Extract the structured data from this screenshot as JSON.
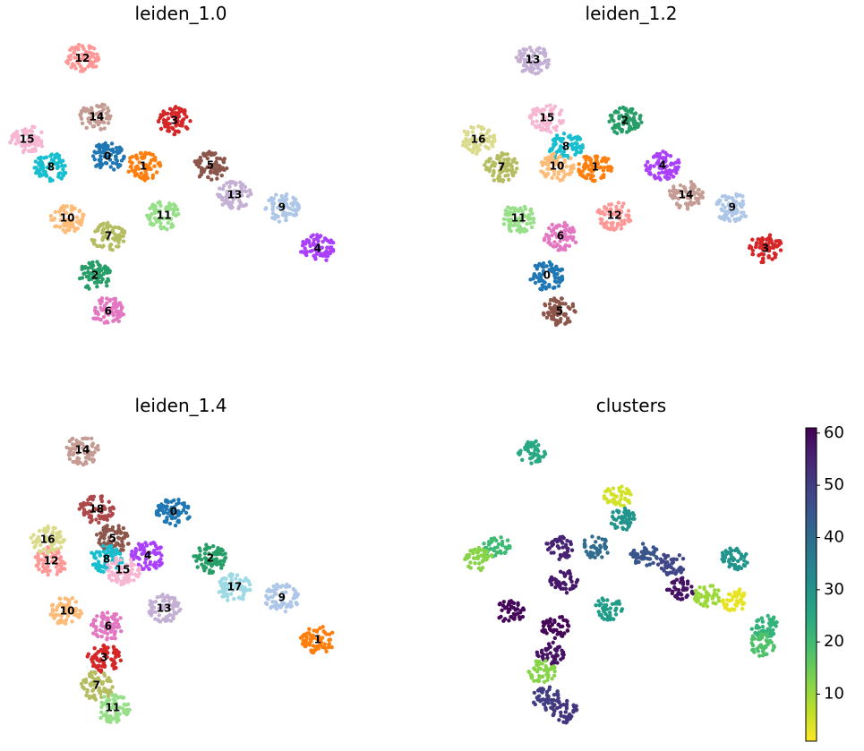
{
  "chart_data": [
    {
      "type": "scatter",
      "title": "leiden_1.0",
      "xlim": [
        0,
        100
      ],
      "ylim": [
        0,
        100
      ],
      "clusters": [
        {
          "label": "0",
          "color": "#1f77b4",
          "x": 27.8,
          "y": 61.8
        },
        {
          "label": "1",
          "color": "#ff7f0e",
          "x": 38.9,
          "y": 58.5
        },
        {
          "label": "2",
          "color": "#279e68",
          "x": 23.9,
          "y": 22.6
        },
        {
          "label": "3",
          "color": "#d62728",
          "x": 48.6,
          "y": 73.5
        },
        {
          "label": "4",
          "color": "#aa40fc",
          "x": 93,
          "y": 31.5
        },
        {
          "label": "5",
          "color": "#8c564b",
          "x": 59.7,
          "y": 58.8
        },
        {
          "label": "6",
          "color": "#e377c2",
          "x": 28,
          "y": 10.9
        },
        {
          "label": "7",
          "color": "#b5bd61",
          "x": 28.1,
          "y": 35.6
        },
        {
          "label": "8",
          "color": "#17becf",
          "x": 10.3,
          "y": 58.2
        },
        {
          "label": "9",
          "color": "#aec7e8",
          "x": 81.9,
          "y": 45
        },
        {
          "label": "10",
          "color": "#ffbb78",
          "x": 15.3,
          "y": 41.5
        },
        {
          "label": "11",
          "color": "#98df8a",
          "x": 45.3,
          "y": 42.4
        },
        {
          "label": "12",
          "color": "#ff9896",
          "x": 20,
          "y": 94
        },
        {
          "label": "13",
          "color": "#c5b0d5",
          "x": 67.2,
          "y": 49.1
        },
        {
          "label": "14",
          "color": "#c49c94",
          "x": 24.4,
          "y": 74.7
        },
        {
          "label": "15",
          "color": "#f7b6d2",
          "x": 2.8,
          "y": 67.4
        }
      ]
    },
    {
      "type": "scatter",
      "title": "leiden_1.2",
      "xlim": [
        0,
        100
      ],
      "ylim": [
        0,
        100
      ],
      "clusters": [
        {
          "label": "0",
          "color": "#1f77b4",
          "x": 29.4,
          "y": 22.6
        },
        {
          "label": "1",
          "color": "#ff7f0e",
          "x": 44.4,
          "y": 58.2
        },
        {
          "label": "2",
          "color": "#279e68",
          "x": 53.6,
          "y": 73.5
        },
        {
          "label": "3",
          "color": "#d62728",
          "x": 97.2,
          "y": 31.5
        },
        {
          "label": "4",
          "color": "#aa40fc",
          "x": 65.3,
          "y": 58.8
        },
        {
          "label": "5",
          "color": "#8c564b",
          "x": 33.3,
          "y": 10.9
        },
        {
          "label": "6",
          "color": "#e377c2",
          "x": 33.6,
          "y": 35.6
        },
        {
          "label": "7",
          "color": "#b5bd61",
          "x": 15.3,
          "y": 58.2
        },
        {
          "label": "8",
          "color": "#17becf",
          "x": 35.3,
          "y": 65
        },
        {
          "label": "9",
          "color": "#aec7e8",
          "x": 86.9,
          "y": 45
        },
        {
          "label": "10",
          "color": "#ffbb78",
          "x": 32.5,
          "y": 58.5
        },
        {
          "label": "11",
          "color": "#98df8a",
          "x": 20.6,
          "y": 41.5
        },
        {
          "label": "12",
          "color": "#ff9896",
          "x": 50.3,
          "y": 42.4
        },
        {
          "label": "13",
          "color": "#c5b0d5",
          "x": 25,
          "y": 93.5
        },
        {
          "label": "14",
          "color": "#c49c94",
          "x": 72.5,
          "y": 49.1
        },
        {
          "label": "15",
          "color": "#f7b6d2",
          "x": 29.4,
          "y": 74.4
        },
        {
          "label": "16",
          "color": "#dbdb8d",
          "x": 8.1,
          "y": 67.4
        }
      ]
    },
    {
      "type": "scatter",
      "title": "leiden_1.4",
      "xlim": [
        0,
        100
      ],
      "ylim": [
        0,
        100
      ],
      "clusters": [
        {
          "label": "0",
          "color": "#1f77b4",
          "x": 48.3,
          "y": 72.9
        },
        {
          "label": "1",
          "color": "#ff7f0e",
          "x": 93,
          "y": 30.9
        },
        {
          "label": "2",
          "color": "#279e68",
          "x": 59.7,
          "y": 57.6
        },
        {
          "label": "3",
          "color": "#d62728",
          "x": 26.7,
          "y": 25
        },
        {
          "label": "4",
          "color": "#aa40fc",
          "x": 40.3,
          "y": 58.5
        },
        {
          "label": "5",
          "color": "#8c564b",
          "x": 29.4,
          "y": 64.1
        },
        {
          "label": "6",
          "color": "#e377c2",
          "x": 28,
          "y": 35.3
        },
        {
          "label": "7",
          "color": "#b5bd61",
          "x": 24.4,
          "y": 15.9
        },
        {
          "label": "8",
          "color": "#17becf",
          "x": 27.5,
          "y": 57.4
        },
        {
          "label": "9",
          "color": "#aec7e8",
          "x": 81.9,
          "y": 44.7
        },
        {
          "label": "10",
          "color": "#ffbb78",
          "x": 15.3,
          "y": 40.3
        },
        {
          "label": "11",
          "color": "#98df8a",
          "x": 29.4,
          "y": 8.5
        },
        {
          "label": "12",
          "color": "#ff9896",
          "x": 10.3,
          "y": 56.8
        },
        {
          "label": "13",
          "color": "#c5b0d5",
          "x": 45.3,
          "y": 41.2
        },
        {
          "label": "14",
          "color": "#c49c94",
          "x": 20,
          "y": 93.2
        },
        {
          "label": "15",
          "color": "#f7b6d2",
          "x": 32.5,
          "y": 53.8
        },
        {
          "label": "16",
          "color": "#dbdb8d",
          "x": 9.2,
          "y": 63.8
        },
        {
          "label": "17",
          "color": "#9edae5",
          "x": 67.2,
          "y": 48.2
        },
        {
          "label": "18",
          "color": "#ad494a",
          "x": 24.4,
          "y": 73.8
        }
      ]
    },
    {
      "type": "colored-scatter",
      "title": "clusters",
      "xlim": [
        0,
        100
      ],
      "ylim": [
        0,
        100
      ],
      "colormap": "viridis_r",
      "clim": [
        1,
        61
      ],
      "cticks": [
        10,
        20,
        30,
        40,
        50,
        60
      ],
      "x": [
        24.7,
        13.9,
        8.3,
        33.3,
        44.4,
        51.4,
        52.8,
        59.7,
        68.1,
        70.8,
        79.2,
        87.5,
        87.5,
        97.2,
        95.8,
        48.6,
        18.1,
        31.9,
        30.6,
        27.8,
        29.2,
        34.7,
        34.7
      ],
      "y": [
        92.6,
        61.2,
        57.4,
        61.2,
        61.2,
        77.9,
        70.6,
        58.8,
        55.9,
        47.6,
        45.6,
        44.1,
        57.4,
        35.3,
        29.4,
        41.2,
        40.3,
        35.3,
        26.5,
        20.6,
        11.8,
        7.4,
        50
      ],
      "values": [
        25,
        20,
        12,
        55,
        40,
        5,
        30,
        45,
        48,
        58,
        10,
        3,
        30,
        22,
        18,
        28,
        60,
        60,
        58,
        12,
        50,
        52,
        57
      ]
    }
  ]
}
